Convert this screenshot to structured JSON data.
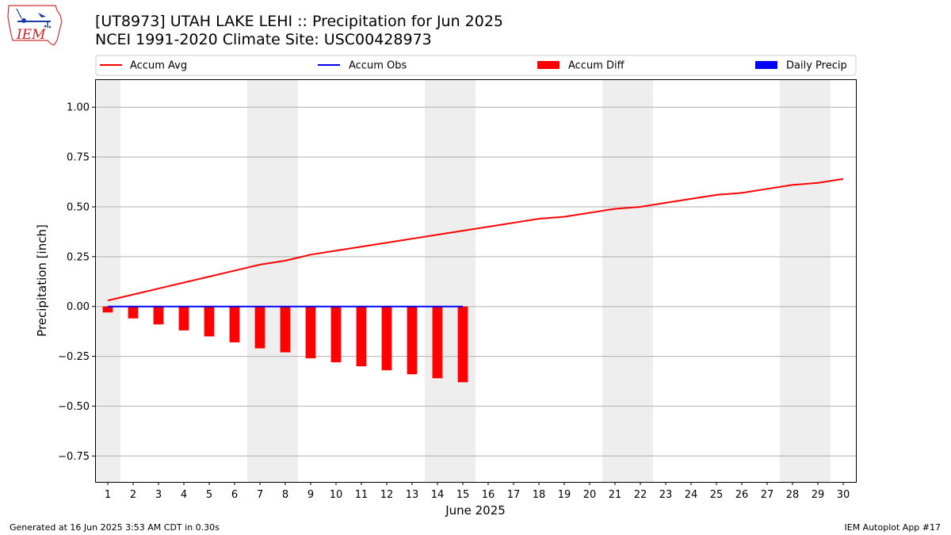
{
  "header": {
    "title": "[UT8973] UTAH LAKE LEHI :: Precipitation for Jun 2025",
    "subtitle": "NCEI 1991-2020 Climate Site: USC00428973"
  },
  "logo": {
    "text": "IEM",
    "icon": "iem-iowa-logo-icon"
  },
  "footer": {
    "left": "Generated at 16 Jun 2025 3:53 AM CDT in 0.30s",
    "right": "IEM Autoplot App #17"
  },
  "colors": {
    "avg": "#ff0000",
    "obs": "#0000ff",
    "diff": "#ff0000",
    "daily": "#0000ff",
    "weekend": "#eeeeee",
    "grid": "#b0b0b0"
  },
  "chart_data": {
    "type": "line",
    "xlabel": "June 2025",
    "ylabel": "Precipitation [inch]",
    "xlim": [
      0.5,
      30.5
    ],
    "ylim": [
      -0.88,
      1.14
    ],
    "yticks": [
      -0.75,
      -0.5,
      -0.25,
      0.0,
      0.25,
      0.5,
      0.75,
      1.0
    ],
    "ytick_labels": [
      "−0.75",
      "−0.50",
      "−0.25",
      "0.00",
      "0.25",
      "0.50",
      "0.75",
      "1.00"
    ],
    "x": [
      1,
      2,
      3,
      4,
      5,
      6,
      7,
      8,
      9,
      10,
      11,
      12,
      13,
      14,
      15,
      16,
      17,
      18,
      19,
      20,
      21,
      22,
      23,
      24,
      25,
      26,
      27,
      28,
      29,
      30
    ],
    "grid": "horizontal",
    "legend_position": "top",
    "weekend_shading": [
      [
        0.5,
        1.5
      ],
      [
        6.5,
        8.5
      ],
      [
        13.5,
        15.5
      ],
      [
        20.5,
        22.5
      ],
      [
        27.5,
        29.5
      ]
    ],
    "series": [
      {
        "name": "Accum Avg",
        "kind": "line",
        "x": [
          1,
          2,
          3,
          4,
          5,
          6,
          7,
          8,
          9,
          10,
          11,
          12,
          13,
          14,
          15,
          16,
          17,
          18,
          19,
          20,
          21,
          22,
          23,
          24,
          25,
          26,
          27,
          28,
          29,
          30
        ],
        "values": [
          0.03,
          0.06,
          0.09,
          0.12,
          0.15,
          0.18,
          0.21,
          0.23,
          0.26,
          0.28,
          0.3,
          0.32,
          0.34,
          0.36,
          0.38,
          0.4,
          0.42,
          0.44,
          0.45,
          0.47,
          0.49,
          0.5,
          0.52,
          0.54,
          0.56,
          0.57,
          0.59,
          0.61,
          0.62,
          0.64
        ]
      },
      {
        "name": "Accum Obs",
        "kind": "line",
        "x": [
          1,
          2,
          3,
          4,
          5,
          6,
          7,
          8,
          9,
          10,
          11,
          12,
          13,
          14,
          15
        ],
        "values": [
          0,
          0,
          0,
          0,
          0,
          0,
          0,
          0,
          0,
          0,
          0,
          0,
          0,
          0,
          0
        ]
      },
      {
        "name": "Accum Diff",
        "kind": "bar",
        "x": [
          1,
          2,
          3,
          4,
          5,
          6,
          7,
          8,
          9,
          10,
          11,
          12,
          13,
          14,
          15
        ],
        "values": [
          -0.03,
          -0.06,
          -0.09,
          -0.12,
          -0.15,
          -0.18,
          -0.21,
          -0.23,
          -0.26,
          -0.28,
          -0.3,
          -0.32,
          -0.34,
          -0.36,
          -0.38
        ]
      },
      {
        "name": "Daily Precip",
        "kind": "bar",
        "x": [
          1,
          2,
          3,
          4,
          5,
          6,
          7,
          8,
          9,
          10,
          11,
          12,
          13,
          14,
          15
        ],
        "values": [
          0,
          0,
          0,
          0,
          0,
          0,
          0,
          0,
          0,
          0,
          0,
          0,
          0,
          0,
          0
        ]
      }
    ]
  }
}
